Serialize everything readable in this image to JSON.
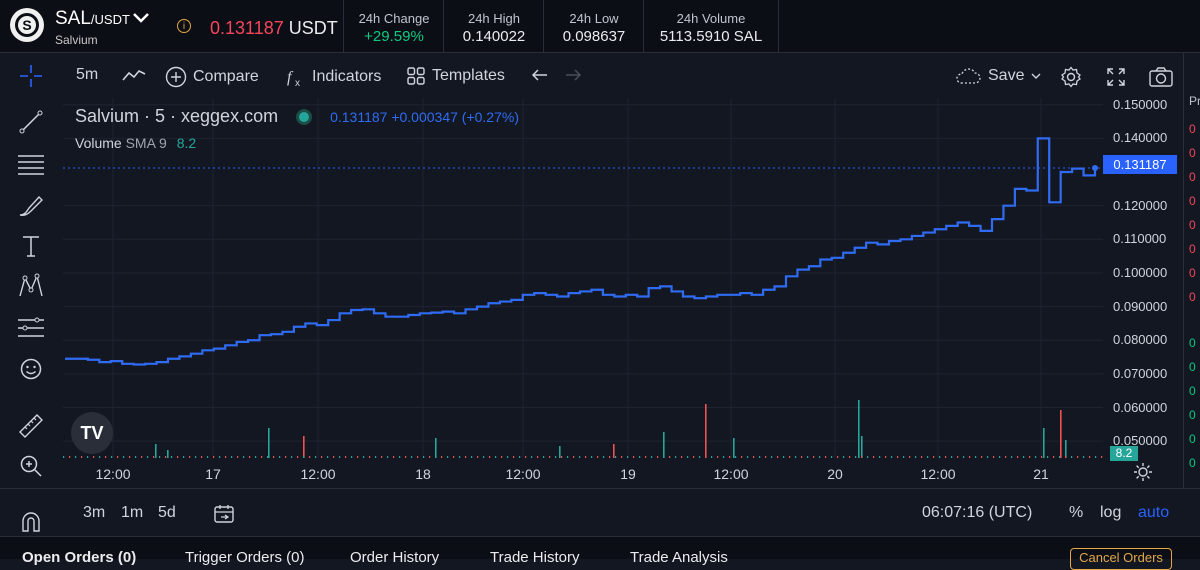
{
  "header": {
    "base": "SAL",
    "quote": "/USDT",
    "name": "Salvium",
    "last_price": "0.131187",
    "last_unit": "USDT",
    "stats": [
      {
        "label": "24h Change",
        "value": "+29.59%"
      },
      {
        "label": "24h High",
        "value": "0.140022"
      },
      {
        "label": "24h Low",
        "value": "0.098637"
      },
      {
        "label": "24h Volume",
        "value": "5113.5910 SAL"
      }
    ]
  },
  "toolbar": {
    "interval": "5m",
    "compare": "Compare",
    "indicators": "Indicators",
    "templates": "Templates",
    "save": "Save"
  },
  "legend": {
    "symbol": "Salvium · 5 · xeggex.com",
    "quote": "0.131187 +0.000347 (+0.27%)",
    "volume_label": "Volume",
    "sma_label": "SMA 9",
    "sma_value": "8.2"
  },
  "chart": {
    "yticks": [
      "0.150000",
      "0.140000",
      "0.131187",
      "0.120000",
      "0.110000",
      "0.100000",
      "0.090000",
      "0.080000",
      "0.070000",
      "0.060000",
      "0.050000"
    ],
    "last_price_label": "0.131187",
    "volume_badge": "8.2",
    "xticks": [
      "12:00",
      "17",
      "12:00",
      "18",
      "12:00",
      "19",
      "12:00",
      "20",
      "12:00",
      "21"
    ]
  },
  "chart_data": {
    "type": "line",
    "series": [
      {
        "values": [
          0.0745,
          0.0745,
          0.0742,
          0.0735,
          0.0738,
          0.073,
          0.0728,
          0.073,
          0.0735,
          0.0745,
          0.0752,
          0.076,
          0.077,
          0.0775,
          0.0785,
          0.0795,
          0.08,
          0.0815,
          0.0818,
          0.0825,
          0.084,
          0.085,
          0.0845,
          0.086,
          0.088,
          0.089,
          0.0892,
          0.088,
          0.087,
          0.087,
          0.0875,
          0.088,
          0.0882,
          0.0885,
          0.088,
          0.0892,
          0.09,
          0.091,
          0.0915,
          0.092,
          0.0935,
          0.094,
          0.0935,
          0.093,
          0.094,
          0.0945,
          0.095,
          0.0935,
          0.093,
          0.0935,
          0.093,
          0.0955,
          0.096,
          0.0945,
          0.093,
          0.0925,
          0.093,
          0.0935,
          0.0935,
          0.094,
          0.0935,
          0.095,
          0.096,
          0.099,
          0.101,
          0.102,
          0.104,
          0.1045,
          0.106,
          0.1075,
          0.109,
          0.1085,
          0.1095,
          0.11,
          0.111,
          0.112,
          0.113,
          0.114,
          0.115,
          0.114,
          0.1125,
          0.116,
          0.12,
          0.125,
          0.1245,
          0.14,
          0.121,
          0.13,
          0.131,
          0.129,
          0.1312
        ],
        "x_start": "16 09:00",
        "x_end": "21 06:07"
      }
    ],
    "ylim": [
      0.045,
      0.152
    ],
    "type_detail": "step line with volume histogram"
  },
  "xaxis_extra": "",
  "bottom": {
    "ranges": [
      "3m",
      "1m",
      "5d"
    ],
    "clock": "06:07:16 (UTC)",
    "pct": "%",
    "log": "log",
    "auto": "auto"
  },
  "tabs": [
    "Open Orders (0)",
    "Trigger Orders (0)",
    "Order History",
    "Trade History",
    "Trade Analysis"
  ],
  "cancel_orders": "Cancel Orders",
  "colors": {
    "accent": "#2962ff",
    "line": "#2f6cf3",
    "up": "#0ecb81",
    "down": "#f6465d"
  }
}
